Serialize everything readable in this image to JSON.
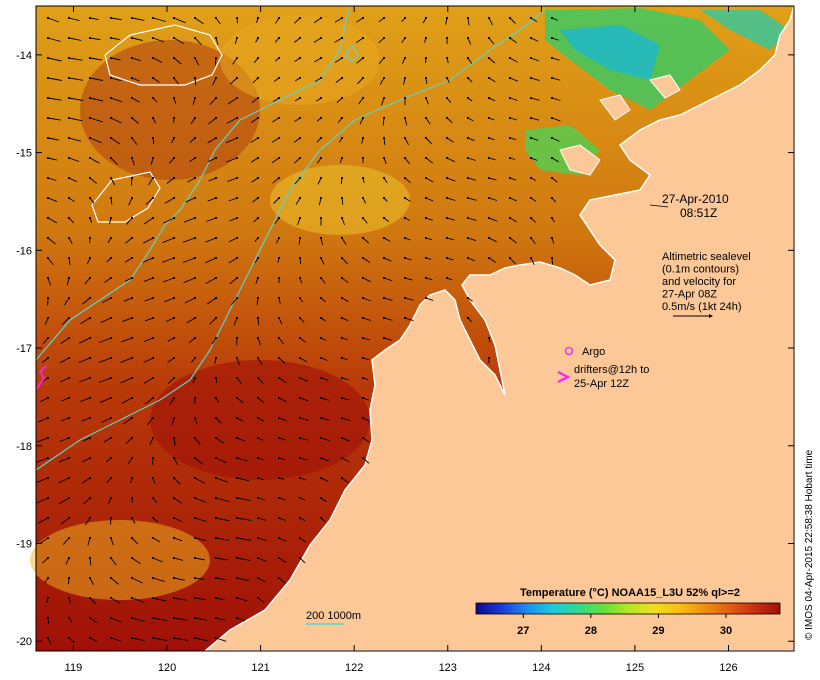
{
  "map": {
    "lon_range": [
      118.6,
      126.7
    ],
    "lat_range": [
      -20.1,
      -13.5
    ],
    "lon_ticks": [
      {
        "value": 119,
        "label": "119"
      },
      {
        "value": 120,
        "label": "120"
      },
      {
        "value": 121,
        "label": "121"
      },
      {
        "value": 122,
        "label": "122"
      },
      {
        "value": 123,
        "label": "123"
      },
      {
        "value": 124,
        "label": "124"
      },
      {
        "value": 125,
        "label": "125"
      },
      {
        "value": 126,
        "label": "126"
      }
    ],
    "lat_ticks": [
      {
        "value": -14,
        "label": "-14"
      },
      {
        "value": -15,
        "label": "-15"
      },
      {
        "value": -16,
        "label": "-16"
      },
      {
        "value": -17,
        "label": "-17"
      },
      {
        "value": -18,
        "label": "-18"
      },
      {
        "value": -19,
        "label": "-19"
      },
      {
        "value": -20,
        "label": "-20"
      }
    ],
    "colors": {
      "land": "#fcc898",
      "coast": "#ffffff",
      "contour_200_1000m": "#5fd3c8",
      "sealevel_contour": "#ffffff",
      "arrows": "#000000",
      "argo": "#e040e0",
      "drifters": "#ff20ff"
    }
  },
  "annotations": {
    "timestamp_date": "27-Apr-2010",
    "timestamp_time": "08:51Z",
    "sealevel_lines": [
      "Altimetric sealevel",
      "(0.1m contours)",
      "and velocity for",
      "27-Apr 08Z",
      "0.5m/s (1kt 24h)"
    ],
    "argo_label": "Argo",
    "drifters_line1": "drifters@12h to",
    "drifters_line2": "25-Apr 12Z",
    "contour_legend": "200 1000m"
  },
  "colorbar": {
    "title": "Temperature (°C) NOAA15_L3U 52% ql>=2",
    "range": [
      26.3,
      30.8
    ],
    "ticks": [
      {
        "value": 27,
        "label": "27"
      },
      {
        "value": 28,
        "label": "28"
      },
      {
        "value": 29,
        "label": "29"
      },
      {
        "value": 30,
        "label": "30"
      }
    ],
    "stops": [
      "#0a0a8c",
      "#1a3ad8",
      "#1e8cf0",
      "#20c8e0",
      "#30d890",
      "#60e040",
      "#b0e820",
      "#f0e020",
      "#f8c010",
      "#f09010",
      "#e06010",
      "#c83010",
      "#a01008"
    ]
  },
  "credit": "© IMOS 04-Apr-2015 22:58:38 Hobart time"
}
